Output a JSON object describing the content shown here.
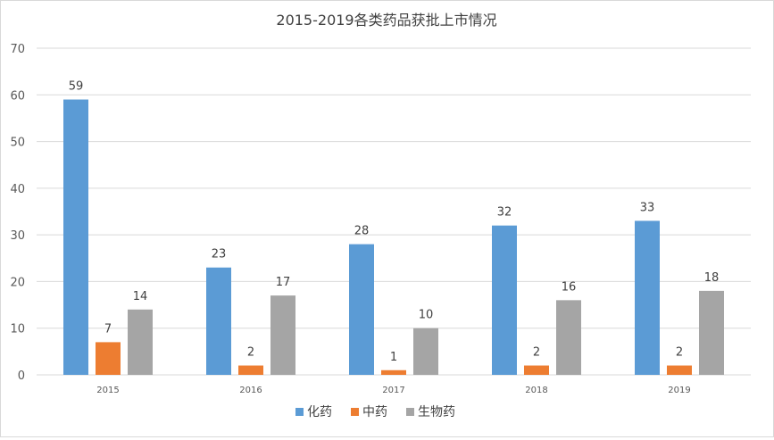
{
  "chart_data": {
    "type": "bar",
    "title": "2015-2019各类药品获批上市情况",
    "categories": [
      "2015",
      "2016",
      "2017",
      "2018",
      "2019"
    ],
    "series": [
      {
        "name": "化药",
        "values": [
          59,
          23,
          28,
          32,
          33
        ]
      },
      {
        "name": "中药",
        "values": [
          7,
          2,
          1,
          2,
          2
        ]
      },
      {
        "name": "生物药",
        "values": [
          14,
          17,
          10,
          16,
          18
        ]
      }
    ],
    "ylim": [
      0,
      70
    ],
    "yticks": [
      0,
      10,
      20,
      30,
      40,
      50,
      60,
      70
    ],
    "grid": true,
    "legend_position": "bottom",
    "colors": [
      "#5b9bd5",
      "#ed7d31",
      "#a5a5a5"
    ],
    "data_labels": true
  }
}
